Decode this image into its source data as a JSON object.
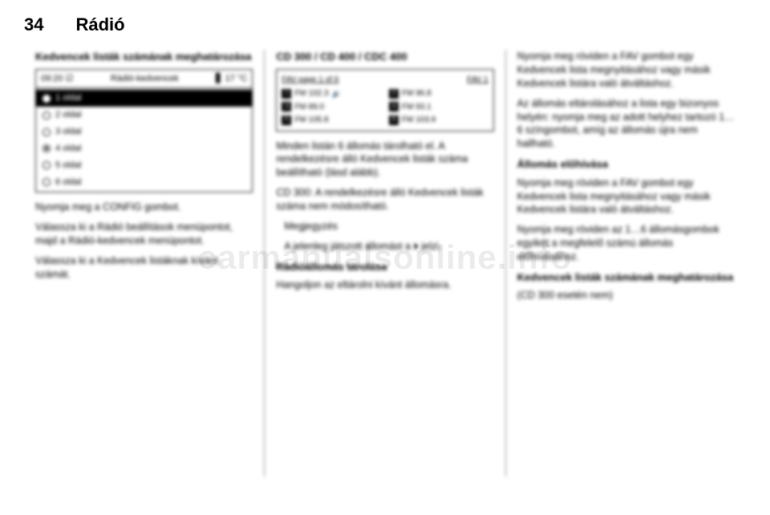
{
  "header": {
    "page_number": "34",
    "section": "Rádió"
  },
  "watermark": "carmanualsonline.info",
  "col1": {
    "heading": "Kedvencek listák számának meghatározása",
    "screen": {
      "time": "09:20",
      "title": "Rádió-kedvencek",
      "temp": "17 °C",
      "rows": [
        {
          "label": "1 oldal",
          "selected": true,
          "filled": false
        },
        {
          "label": "2 oldal",
          "selected": false,
          "filled": false
        },
        {
          "label": "3 oldal",
          "selected": false,
          "filled": false
        },
        {
          "label": "4 oldal",
          "selected": false,
          "filled": true
        },
        {
          "label": "5 oldal",
          "selected": false,
          "filled": false
        },
        {
          "label": "6 oldal",
          "selected": false,
          "filled": false
        }
      ]
    },
    "p1": "Nyomja meg a CONFIG gombot.",
    "p2": "Válassza ki a Rádió beállítások menüpontot, majd a Rádió-kedvencek menüpontot.",
    "p3": "Válassza ki a Kedvencek listáknak kívánt számát."
  },
  "col2": {
    "heading": "CD 300 / CD 400 / CDC 400",
    "screen": {
      "top_left": "FAV page 1 of 6",
      "top_right": "FAV 1",
      "cells": [
        {
          "n": "1",
          "text": "FM 102.3",
          "speaker": true
        },
        {
          "n": "2",
          "text": "FM 96.8"
        },
        {
          "n": "3",
          "text": "FM 89.0"
        },
        {
          "n": "4",
          "text": "FM 93.1"
        },
        {
          "n": "5",
          "text": "FM 105.8"
        },
        {
          "n": "6",
          "text": "FM 103.9"
        }
      ]
    },
    "p1": "Minden listán 6 állomás tárolható el. A rendelkezésre álló Kedvencek listák száma beállítható (lásd alább).",
    "p2": "CD 300: A rendelkezésre álló Kedvencek listák száma nem módosítható.",
    "note_label": "Megjegyzés",
    "note_text": "A jelenleg játszott állomást a ⏵ jelzi.",
    "sub2": "Rádióállomás tárolása",
    "p3": "Hangoljon az eltárolni kívánt állomásra."
  },
  "col3": {
    "p1": "Nyomja meg röviden a FAV gombot egy Kedvencek lista megnyitásához vagy másik Kedvencek listára való átváltáshoz.",
    "p2": "Az állomás eltárolásához a lista egy bizonyos helyén: nyomja meg az adott helyhez tartozó 1…6 színgombot, amíg az állomás újra nem hallható.",
    "sub1": "Állomás előhívása",
    "p3": "Nyomja meg röviden a FAV gombot egy Kedvencek lista megnyitásához vagy másik Kedvencek listára való átváltáshoz.",
    "p4": "Nyomja meg röviden az 1…6 állomásgombok egyikét a megfelelő számú állomás előhívásához.",
    "sub2": "Kedvencek listák számának meghatározása",
    "p5": "(CD 300 esetén nem)"
  }
}
